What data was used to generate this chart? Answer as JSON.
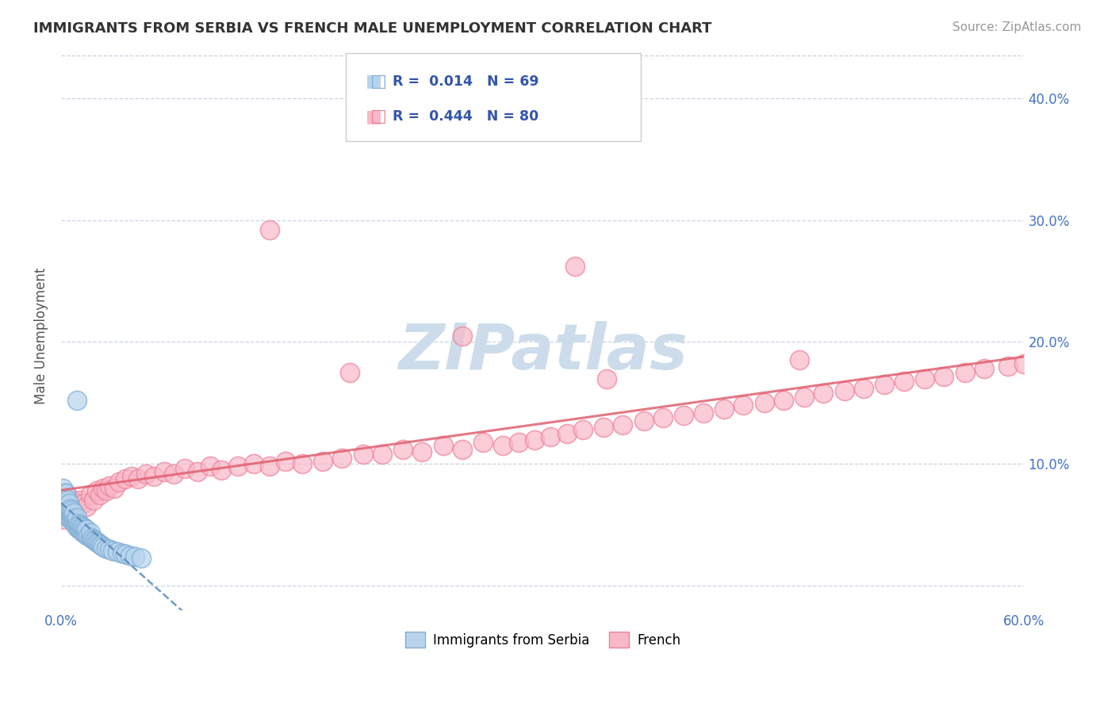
{
  "title": "IMMIGRANTS FROM SERBIA VS FRENCH MALE UNEMPLOYMENT CORRELATION CHART",
  "source": "Source: ZipAtlas.com",
  "ylabel": "Male Unemployment",
  "xlim": [
    0.0,
    0.6
  ],
  "ylim": [
    -0.02,
    0.43
  ],
  "serbia_color": "#7fadd4",
  "french_color": "#f08098",
  "serbia_fill": "#b8d4ed",
  "french_fill": "#f8b8c8",
  "serbia_R": 0.014,
  "serbia_N": 69,
  "french_R": 0.444,
  "french_N": 80,
  "watermark": "ZIPatlas",
  "watermark_color": "#cddcea",
  "legend_label_serbia": "Immigrants from Serbia",
  "legend_label_french": "French",
  "serbia_line_color": "#5588bb",
  "french_line_color": "#e06070",
  "serbia_x": [
    0.001,
    0.001,
    0.001,
    0.001,
    0.002,
    0.002,
    0.002,
    0.002,
    0.002,
    0.003,
    0.003,
    0.003,
    0.003,
    0.003,
    0.004,
    0.004,
    0.004,
    0.004,
    0.005,
    0.005,
    0.005,
    0.005,
    0.006,
    0.006,
    0.006,
    0.007,
    0.007,
    0.007,
    0.008,
    0.008,
    0.008,
    0.009,
    0.009,
    0.01,
    0.01,
    0.01,
    0.011,
    0.011,
    0.012,
    0.012,
    0.013,
    0.013,
    0.014,
    0.014,
    0.015,
    0.015,
    0.016,
    0.016,
    0.017,
    0.018,
    0.018,
    0.019,
    0.02,
    0.021,
    0.022,
    0.023,
    0.024,
    0.025,
    0.026,
    0.028,
    0.03,
    0.032,
    0.035,
    0.038,
    0.04,
    0.043,
    0.046,
    0.05,
    0.01
  ],
  "serbia_y": [
    0.062,
    0.068,
    0.075,
    0.08,
    0.058,
    0.063,
    0.068,
    0.072,
    0.076,
    0.06,
    0.064,
    0.068,
    0.072,
    0.076,
    0.058,
    0.062,
    0.066,
    0.07,
    0.056,
    0.06,
    0.064,
    0.068,
    0.055,
    0.059,
    0.063,
    0.054,
    0.058,
    0.062,
    0.052,
    0.056,
    0.06,
    0.05,
    0.054,
    0.048,
    0.052,
    0.056,
    0.047,
    0.051,
    0.046,
    0.05,
    0.045,
    0.049,
    0.044,
    0.048,
    0.043,
    0.047,
    0.042,
    0.046,
    0.041,
    0.04,
    0.044,
    0.039,
    0.038,
    0.037,
    0.036,
    0.035,
    0.034,
    0.033,
    0.032,
    0.031,
    0.03,
    0.029,
    0.028,
    0.027,
    0.026,
    0.025,
    0.024,
    0.023,
    0.152
  ],
  "french_x": [
    0.002,
    0.003,
    0.004,
    0.005,
    0.006,
    0.007,
    0.008,
    0.009,
    0.01,
    0.012,
    0.014,
    0.016,
    0.018,
    0.02,
    0.022,
    0.024,
    0.026,
    0.028,
    0.03,
    0.033,
    0.036,
    0.04,
    0.044,
    0.048,
    0.053,
    0.058,
    0.064,
    0.07,
    0.077,
    0.085,
    0.093,
    0.1,
    0.11,
    0.12,
    0.13,
    0.14,
    0.15,
    0.163,
    0.175,
    0.188,
    0.2,
    0.213,
    0.225,
    0.238,
    0.25,
    0.263,
    0.275,
    0.285,
    0.295,
    0.305,
    0.315,
    0.325,
    0.338,
    0.35,
    0.363,
    0.375,
    0.388,
    0.4,
    0.413,
    0.425,
    0.438,
    0.45,
    0.463,
    0.475,
    0.488,
    0.5,
    0.513,
    0.525,
    0.538,
    0.55,
    0.563,
    0.575,
    0.59,
    0.6,
    0.34,
    0.25,
    0.18,
    0.13,
    0.32,
    0.46
  ],
  "french_y": [
    0.055,
    0.062,
    0.068,
    0.072,
    0.066,
    0.07,
    0.065,
    0.068,
    0.064,
    0.07,
    0.068,
    0.065,
    0.075,
    0.07,
    0.078,
    0.075,
    0.08,
    0.078,
    0.082,
    0.08,
    0.085,
    0.088,
    0.09,
    0.088,
    0.092,
    0.09,
    0.094,
    0.092,
    0.096,
    0.094,
    0.098,
    0.095,
    0.098,
    0.1,
    0.098,
    0.102,
    0.1,
    0.102,
    0.105,
    0.108,
    0.108,
    0.112,
    0.11,
    0.115,
    0.112,
    0.118,
    0.115,
    0.118,
    0.12,
    0.122,
    0.125,
    0.128,
    0.13,
    0.132,
    0.135,
    0.138,
    0.14,
    0.142,
    0.145,
    0.148,
    0.15,
    0.152,
    0.155,
    0.158,
    0.16,
    0.162,
    0.165,
    0.168,
    0.17,
    0.172,
    0.175,
    0.178,
    0.18,
    0.182,
    0.17,
    0.205,
    0.175,
    0.292,
    0.262,
    0.185
  ]
}
